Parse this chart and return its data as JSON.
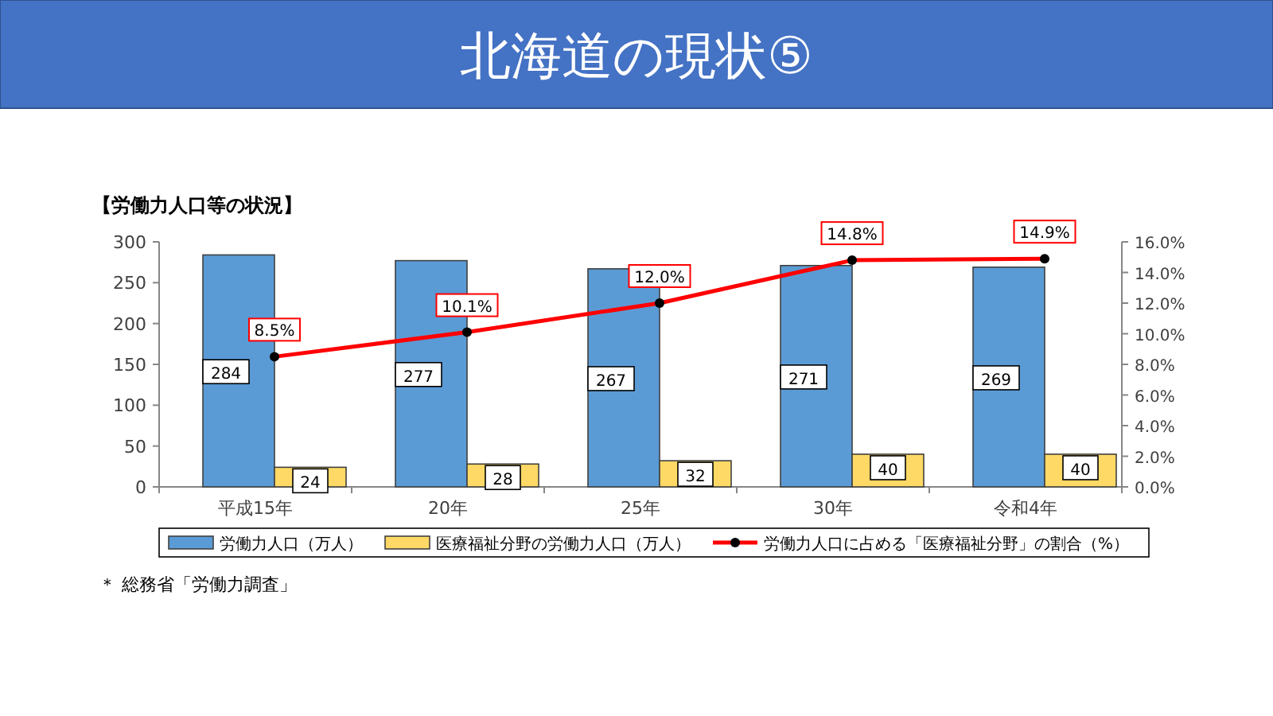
{
  "chart_data": {
    "type": "bar",
    "title": "北海道の現状⑤",
    "subtitle": "【労働力人口等の状況】",
    "categories": [
      "平成15年",
      "20年",
      "25年",
      "30年",
      "令和4年"
    ],
    "series": [
      {
        "name": "労働力人口（万人）",
        "color": "#5b9bd5",
        "values": [
          284,
          277,
          267,
          271,
          269
        ]
      },
      {
        "name": "医療福祉分野の労働力人口（万人）",
        "color": "#ffd966",
        "values": [
          24,
          28,
          32,
          40,
          40
        ]
      },
      {
        "name": "労働力人口に占める「医療福祉分野」の割合（%）",
        "type": "line",
        "axis": "y2",
        "color": "#ff0000",
        "marker": "circle",
        "values": [
          8.5,
          10.1,
          12.0,
          14.8,
          14.9
        ],
        "value_labels": [
          "8.5%",
          "10.1%",
          "12.0%",
          "14.8%",
          "14.9%"
        ]
      }
    ],
    "ylim": [
      0,
      300
    ],
    "yticks": [
      0,
      50,
      100,
      150,
      200,
      250,
      300
    ],
    "y2lim": [
      0,
      16
    ],
    "y2ticks": [
      {
        "value": 0,
        "label": "0.0%"
      },
      {
        "value": 2,
        "label": "2.0%"
      },
      {
        "value": 4,
        "label": "4.0%"
      },
      {
        "value": 6,
        "label": "6.0%"
      },
      {
        "value": 8,
        "label": "8.0%"
      },
      {
        "value": 10,
        "label": "10.0%"
      },
      {
        "value": 12,
        "label": "12.0%"
      },
      {
        "value": 14,
        "label": "14.0%"
      },
      {
        "value": 16,
        "label": "16.0%"
      }
    ],
    "data_labels": true,
    "legend": "bottom",
    "grid": false,
    "annotations": [
      "＊ 総務省「労働力調査」"
    ]
  }
}
